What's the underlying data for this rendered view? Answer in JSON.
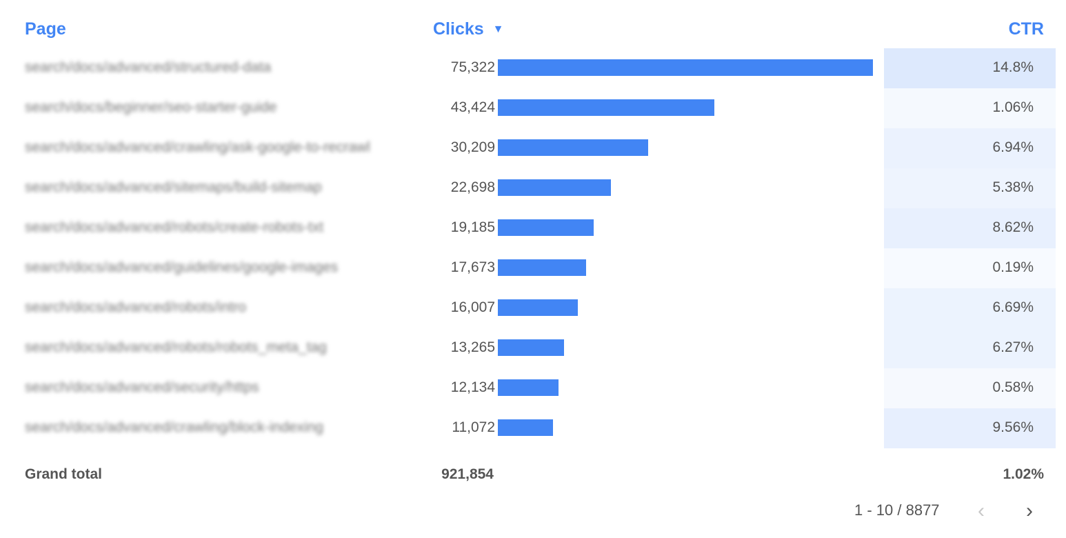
{
  "header": {
    "page": "Page",
    "clicks": "Clicks",
    "sort_icon": "triangle-down-icon",
    "ctr": "CTR"
  },
  "colors": {
    "accent": "#4285f4",
    "bar": "#4285f4"
  },
  "rows": [
    {
      "page": "search/docs/advanced/structured-data",
      "clicks": "75,322",
      "clicks_value": 75322,
      "ctr": "14.8%",
      "ctr_value": 14.8
    },
    {
      "page": "search/docs/beginner/seo-starter-guide",
      "clicks": "43,424",
      "clicks_value": 43424,
      "ctr": "1.06%",
      "ctr_value": 1.06
    },
    {
      "page": "search/docs/advanced/crawling/ask-google-to-recrawl",
      "clicks": "30,209",
      "clicks_value": 30209,
      "ctr": "6.94%",
      "ctr_value": 6.94
    },
    {
      "page": "search/docs/advanced/sitemaps/build-sitemap",
      "clicks": "22,698",
      "clicks_value": 22698,
      "ctr": "5.38%",
      "ctr_value": 5.38
    },
    {
      "page": "search/docs/advanced/robots/create-robots-txt",
      "clicks": "19,185",
      "clicks_value": 19185,
      "ctr": "8.62%",
      "ctr_value": 8.62
    },
    {
      "page": "search/docs/advanced/guidelines/google-images",
      "clicks": "17,673",
      "clicks_value": 17673,
      "ctr": "0.19%",
      "ctr_value": 0.19
    },
    {
      "page": "search/docs/advanced/robots/intro",
      "clicks": "16,007",
      "clicks_value": 16007,
      "ctr": "6.69%",
      "ctr_value": 6.69
    },
    {
      "page": "search/docs/advanced/robots/robots_meta_tag",
      "clicks": "13,265",
      "clicks_value": 13265,
      "ctr": "6.27%",
      "ctr_value": 6.27
    },
    {
      "page": "search/docs/advanced/security/https",
      "clicks": "12,134",
      "clicks_value": 12134,
      "ctr": "0.58%",
      "ctr_value": 0.58
    },
    {
      "page": "search/docs/advanced/crawling/block-indexing",
      "clicks": "11,072",
      "clicks_value": 11072,
      "ctr": "9.56%",
      "ctr_value": 9.56
    }
  ],
  "total": {
    "label": "Grand total",
    "clicks": "921,854",
    "ctr": "1.02%"
  },
  "pagination": {
    "range": "1 - 10 / 8877",
    "prev_icon": "chevron-left-icon",
    "next_icon": "chevron-right-icon"
  }
}
